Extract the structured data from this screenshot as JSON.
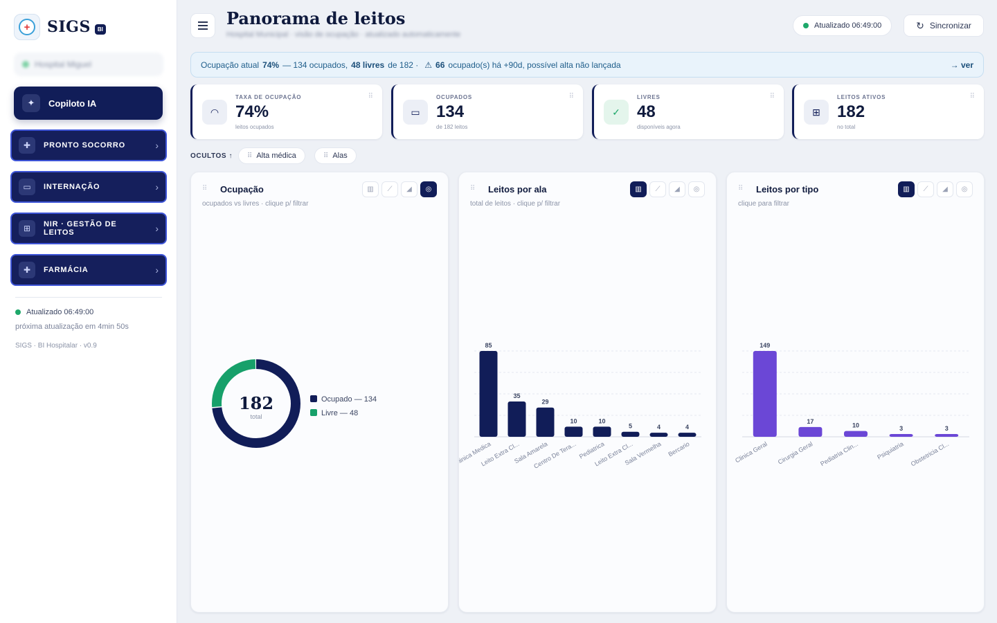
{
  "sidebar": {
    "brand": "SIGS",
    "brand_badge": "BI",
    "hospital_name": "Hospital Miguel",
    "copilot_label": "Copiloto IA",
    "nav": [
      {
        "label": "PRONTO SOCORRO",
        "icon": "plus-cross-icon"
      },
      {
        "label": "INTERNAÇÃO",
        "icon": "bed-icon"
      },
      {
        "label": "NIR · GESTÃO DE LEITOS",
        "icon": "grid-icon"
      },
      {
        "label": "FARMÁCIA",
        "icon": "plus-cross-icon"
      }
    ],
    "status": "Atualizado 06:49:00",
    "next_update": "próxima atualização em 4min 50s",
    "version": "SIGS · BI Hospitalar · v0.9"
  },
  "header": {
    "title": "Panorama de leitos",
    "subtitle": "Hospital Municipal · visão de ocupação · atualizado automaticamente",
    "updated": "Atualizado 06:49:00",
    "sync_label": "Sincronizar"
  },
  "banner": {
    "label": "Ocupação atual",
    "pct": "74%",
    "occupied": "— 134 ocupados,",
    "free": "48 livres",
    "of_total": "de 182 ·",
    "warn_count": "66",
    "warn_text": "ocupado(s) há +90d, possível alta não lançada",
    "link": "→ ver"
  },
  "kpis": [
    {
      "label": "TAXA DE OCUPAÇÃO",
      "value": "74%",
      "sub": "leitos ocupados",
      "icon": "gauge-icon",
      "icon_bg": "#eceff6",
      "icon_color": "#111d58"
    },
    {
      "label": "OCUPADOS",
      "value": "134",
      "sub": "de 182 leitos",
      "icon": "bed-icon",
      "icon_bg": "#eceff6",
      "icon_color": "#111d58"
    },
    {
      "label": "LIVRES",
      "value": "48",
      "sub": "disponíveis agora",
      "icon": "check-circle-icon",
      "icon_bg": "#e4f5ec",
      "icon_color": "#1ea86a"
    },
    {
      "label": "LEITOS ATIVOS",
      "value": "182",
      "sub": "no total",
      "icon": "grid-icon",
      "icon_bg": "#eceff6",
      "icon_color": "#111d58"
    }
  ],
  "hidden": {
    "label": "OCULTOS ↑",
    "chips": [
      "Alta médica",
      "Alas"
    ]
  },
  "panels": [
    {
      "title": "Ocupação",
      "subtitle": "ocupados vs livres · clique p/ filtrar",
      "active_type": 3
    },
    {
      "title": "Leitos por ala",
      "subtitle": "total de leitos · clique p/ filtrar",
      "active_type": 0
    },
    {
      "title": "Leitos por tipo",
      "subtitle": "clique para filtrar",
      "active_type": 0
    }
  ],
  "chart_data": [
    {
      "type": "pie",
      "center_value": "182",
      "center_label": "total",
      "categories": [
        "Ocupado — 134",
        "Livre — 48"
      ],
      "values": [
        134,
        48
      ],
      "colors": [
        "#111d58",
        "#17a06a"
      ],
      "legend": "right"
    },
    {
      "type": "bar",
      "categories": [
        "Clinica Medica",
        "Leito Extra Cl...",
        "Sala Amarela",
        "Centro De Tera...",
        "Pediatrica",
        "Leito Extra Cl...",
        "Sala Vermelha",
        "Bercario"
      ],
      "values": [
        85,
        35,
        29,
        10,
        10,
        5,
        4,
        4
      ],
      "color": "#111d58",
      "ylim": [
        0,
        85
      ]
    },
    {
      "type": "bar",
      "categories": [
        "Clinica Geral",
        "Cirurgia Geral",
        "Pediatria Clin...",
        "Psiquiatria",
        "Obstetricia Cl..."
      ],
      "values": [
        149,
        17,
        10,
        3,
        3
      ],
      "color": "#6b47d6",
      "ylim": [
        0,
        149
      ]
    }
  ]
}
